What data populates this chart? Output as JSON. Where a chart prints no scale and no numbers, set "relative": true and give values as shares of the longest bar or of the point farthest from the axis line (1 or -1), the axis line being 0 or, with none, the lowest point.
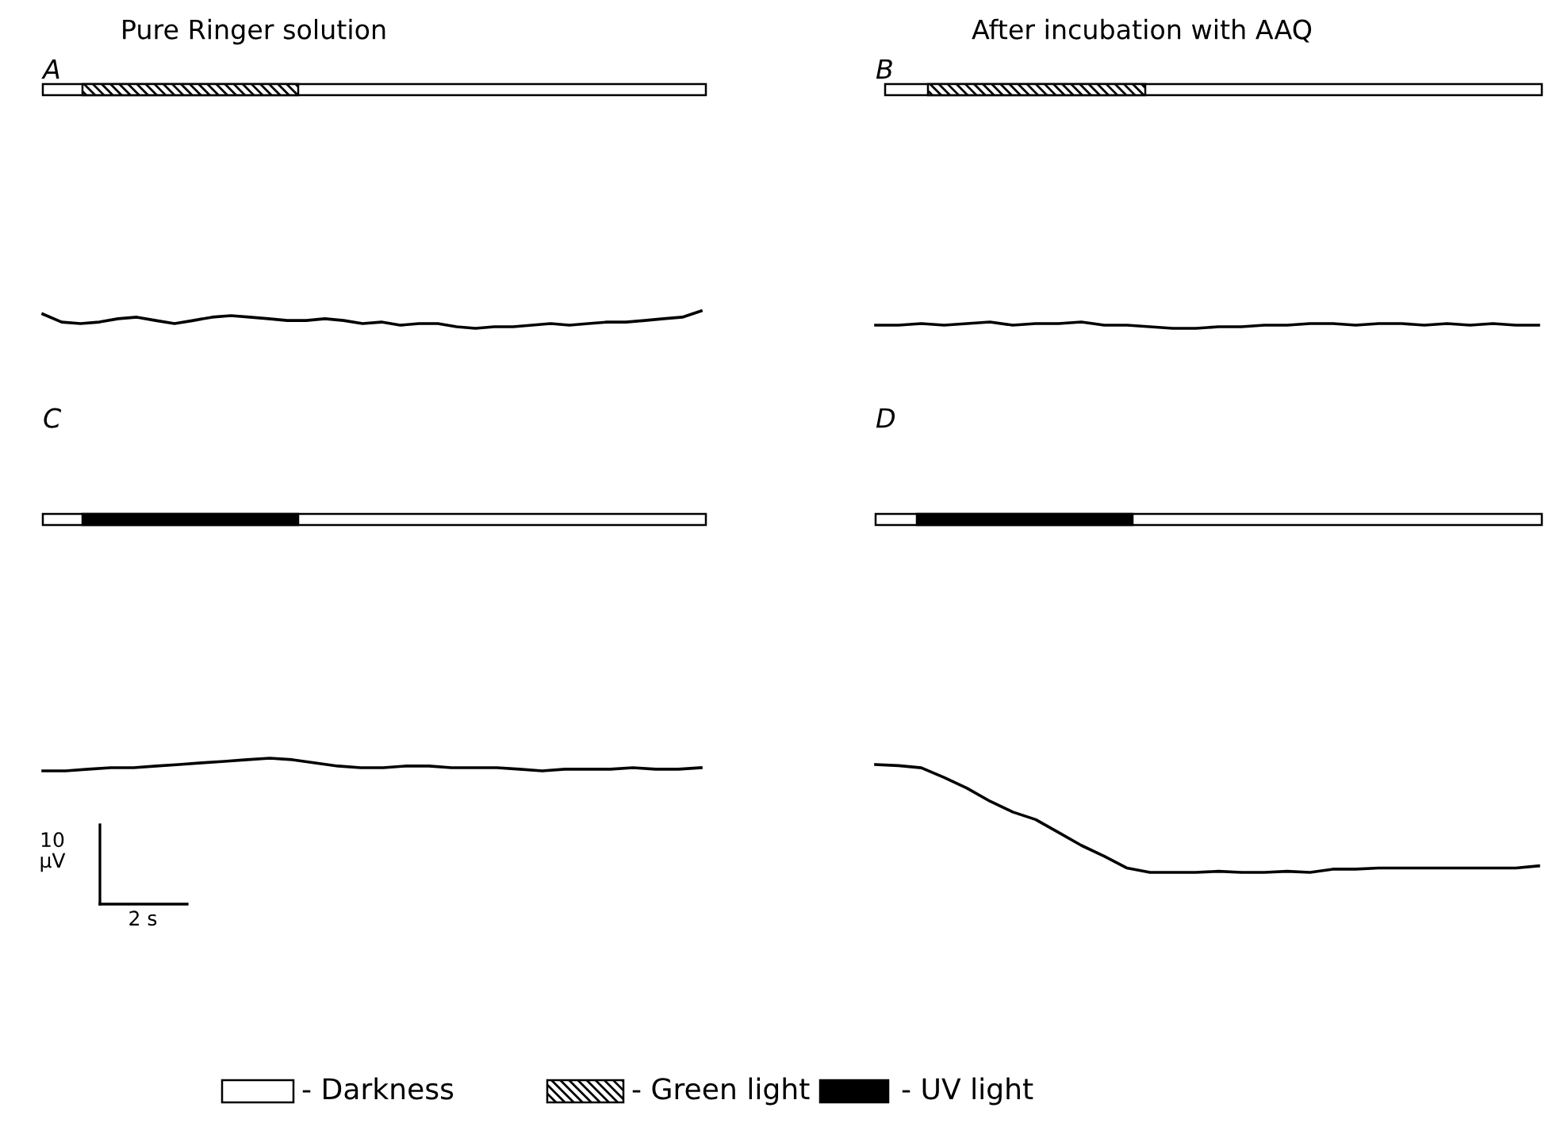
{
  "chart_data": [
    {
      "type": "line",
      "title": "Pure Ringer solution",
      "subtitle": "A",
      "relative": true,
      "categories": [
        null,
        null,
        null,
        null,
        null,
        null,
        null,
        null,
        null,
        null,
        null,
        null,
        null,
        null,
        null,
        null,
        null,
        null,
        null,
        null,
        null,
        null,
        null,
        null,
        null,
        null,
        null,
        null,
        null,
        null,
        null,
        null,
        null,
        null,
        null,
        null
      ],
      "series": [
        {
          "color": "#000000",
          "values": [
            0.82,
            0.36,
            0.27,
            0.36,
            0.55,
            0.64,
            0.45,
            0.27,
            0.45,
            0.64,
            0.73,
            0.64,
            0.55,
            0.45,
            0.45,
            0.55,
            0.45,
            0.27,
            0.36,
            0.18,
            0.27,
            0.27,
            0.09,
            0,
            0.09,
            0.09,
            0.18,
            0.27,
            0.18,
            0.27,
            0.36,
            0.36,
            0.45,
            0.55,
            0.64,
            1
          ]
        }
      ]
    },
    {
      "type": "line",
      "title": "After incubation with AAQ",
      "subtitle": "B",
      "relative": true,
      "categories": [
        null,
        null,
        null,
        null,
        null,
        null,
        null,
        null,
        null,
        null,
        null,
        null,
        null,
        null,
        null,
        null,
        null,
        null,
        null,
        null,
        null,
        null,
        null,
        null,
        null,
        null,
        null,
        null,
        null,
        null
      ],
      "series": [
        {
          "color": "#000000",
          "values": [
            0.5,
            0.5,
            0.75,
            0.5,
            0.75,
            1,
            0.5,
            0.75,
            0.75,
            1,
            0.5,
            0.5,
            0.25,
            0,
            0,
            0.25,
            0.25,
            0.5,
            0.5,
            0.75,
            0.75,
            0.5,
            0.75,
            0.75,
            0.5,
            0.75,
            0.5,
            0.75,
            0.5,
            0.5
          ]
        }
      ]
    },
    {
      "type": "line",
      "subtitle": "C",
      "relative": true,
      "annotations": [
        "10\nµV",
        "2 s"
      ],
      "categories": [
        null,
        null,
        null,
        null,
        null,
        null,
        null,
        null,
        null,
        null,
        null,
        null,
        null,
        null,
        null,
        null,
        null,
        null,
        null,
        null,
        null,
        null,
        null,
        null,
        null,
        null,
        null,
        null,
        null,
        null
      ],
      "series": [
        {
          "color": "#000000",
          "values": [
            0,
            0,
            0.13,
            0.25,
            0.25,
            0.38,
            0.5,
            0.63,
            0.75,
            0.88,
            1,
            0.88,
            0.63,
            0.38,
            0.25,
            0.25,
            0.38,
            0.38,
            0.25,
            0.25,
            0.25,
            0.13,
            0,
            0.13,
            0.13,
            0.13,
            0.25,
            0.13,
            0.13,
            0.25
          ]
        }
      ]
    },
    {
      "type": "line",
      "subtitle": "D",
      "relative": true,
      "categories": [
        null,
        null,
        null,
        null,
        null,
        null,
        null,
        null,
        null,
        null,
        null,
        null,
        null,
        null,
        null,
        null,
        null,
        null,
        null,
        null,
        null,
        null,
        null,
        null,
        null,
        null,
        null,
        null,
        null,
        null
      ],
      "series": [
        {
          "color": "#000000",
          "values": [
            1,
            0.99,
            0.97,
            0.88,
            0.78,
            0.66,
            0.56,
            0.49,
            0.37,
            0.25,
            0.15,
            0.04,
            0,
            0,
            0,
            0.01,
            0,
            0,
            0.01,
            0,
            0.03,
            0.03,
            0.04,
            0.04,
            0.04,
            0.04,
            0.04,
            0.04,
            0.04,
            0.06
          ]
        }
      ]
    },
    {
      "type": "other",
      "annotations": [
        "- Darkness",
        "- Green light",
        "- UV light"
      ]
    }
  ]
}
